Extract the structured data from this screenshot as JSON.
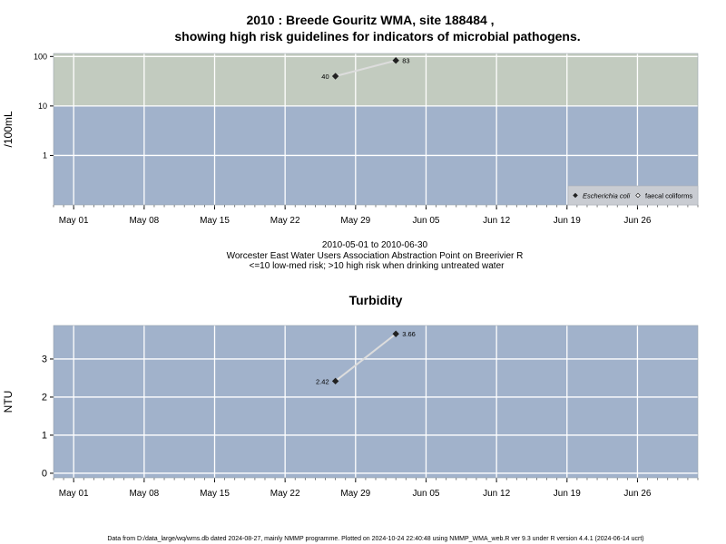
{
  "title_line1": "2010 : Breede Gouritz WMA, site 188484 ,",
  "title_line2": "showing high risk guidelines for indicators of microbial pathogens.",
  "caption_line1": "2010-05-01 to 2010-06-30",
  "caption_line2": "Worcester East Water Users Association Abstraction Point on Breerivier R",
  "caption_line3": "<=10 low-med risk; >10 high risk when drinking untreated water",
  "footer": "Data from D:/data_large/wq/wms.db dated 2024-08-27, mainly NMMP programme. Plotted on 2024-10-24 22:40:48 using NMMP_WMA_web.R ver 9.3 under R version 4.4.1 (2024-06-14 ucrt)",
  "colors": {
    "low_risk_band": "#a1b2cb",
    "high_risk_band": "#c2cbbf",
    "grid": "#ffffff",
    "series_line": "#dddddd",
    "point": "#222222"
  },
  "chart_data": [
    {
      "type": "line",
      "title": "",
      "xlabel": "",
      "ylabel": "/100mL",
      "x_tick_labels": [
        "May 01",
        "May 08",
        "May 15",
        "May 22",
        "May 29",
        "Jun 05",
        "Jun 12",
        "Jun 19",
        "Jun 26"
      ],
      "x_tick_dates": [
        "2010-05-01",
        "2010-05-08",
        "2010-05-15",
        "2010-05-22",
        "2010-05-29",
        "2010-06-05",
        "2010-06-12",
        "2010-06-19",
        "2010-06-26"
      ],
      "xlim": [
        "2010-04-29",
        "2010-07-02"
      ],
      "y_scale": "log",
      "y_tick_labels": [
        "1",
        "10",
        "100"
      ],
      "y_tick_values": [
        1,
        10,
        100
      ],
      "ylim": [
        0.1,
        115
      ],
      "bands": [
        {
          "from": 0.1,
          "to": 10,
          "risk": "low-med"
        },
        {
          "from": 10,
          "to": 115,
          "risk": "high"
        }
      ],
      "series": [
        {
          "name": "Escherichia coli",
          "marker": "filled-diamond",
          "x": [
            "2010-05-27",
            "2010-06-02"
          ],
          "y": [
            40,
            83
          ],
          "labels": [
            "40",
            "83"
          ]
        },
        {
          "name": "faecal coliforms",
          "marker": "open-diamond",
          "x": [],
          "y": []
        }
      ],
      "grid": true,
      "legend_position": "bottom-right"
    },
    {
      "type": "line",
      "title": "Turbidity",
      "xlabel": "",
      "ylabel": "NTU",
      "x_tick_labels": [
        "May 01",
        "May 08",
        "May 15",
        "May 22",
        "May 29",
        "Jun 05",
        "Jun 12",
        "Jun 19",
        "Jun 26"
      ],
      "x_tick_dates": [
        "2010-05-01",
        "2010-05-08",
        "2010-05-15",
        "2010-05-22",
        "2010-05-29",
        "2010-06-05",
        "2010-06-12",
        "2010-06-19",
        "2010-06-26"
      ],
      "xlim": [
        "2010-04-29",
        "2010-07-02"
      ],
      "y_scale": "linear",
      "y_tick_labels": [
        "0",
        "1",
        "2",
        "3"
      ],
      "y_tick_values": [
        0,
        1,
        2,
        3
      ],
      "ylim": [
        -0.12,
        3.88
      ],
      "series": [
        {
          "name": "",
          "marker": "filled-diamond",
          "x": [
            "2010-05-27",
            "2010-06-02"
          ],
          "y": [
            2.42,
            3.66
          ],
          "labels": [
            "2.42",
            "3.66"
          ]
        }
      ],
      "grid": true
    }
  ]
}
